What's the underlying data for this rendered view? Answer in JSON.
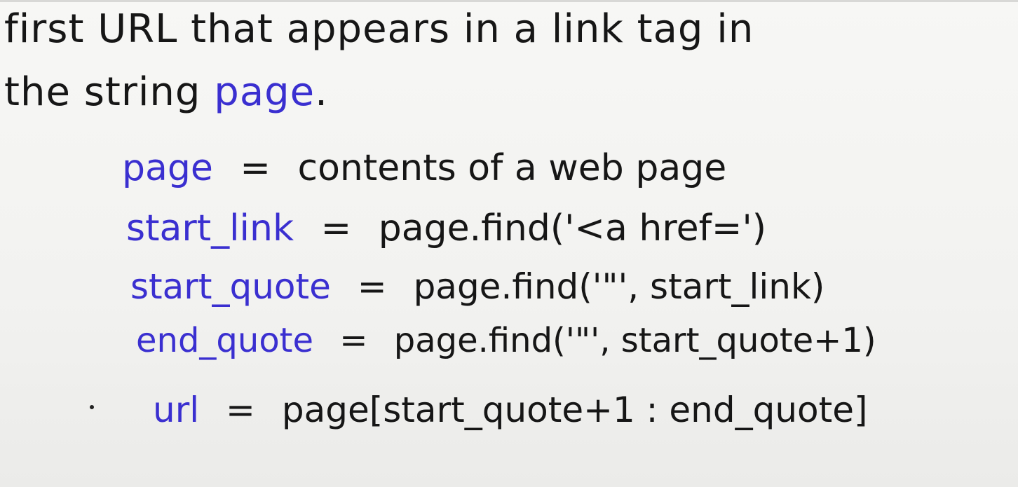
{
  "heading": {
    "line1": "first URL that appears in a link tag in",
    "line2_prefix": "the string ",
    "line2_var": "page",
    "line2_suffix": "."
  },
  "code": {
    "lines": [
      {
        "lhs": "page",
        "eq": "=",
        "rhs": "contents of a web page"
      },
      {
        "lhs": "start_link",
        "eq": "=",
        "rhs": "page.find('<a href=')"
      },
      {
        "lhs": "start_quote",
        "eq": "=",
        "rhs": "page.find('\"', start_link)"
      },
      {
        "lhs": "end_quote",
        "eq": "=",
        "rhs": "page.find('\"', start_quote+1)"
      },
      {
        "lhs": "url",
        "eq": "=",
        "rhs": "page[start_quote+1 : end_quote]"
      }
    ]
  },
  "colors": {
    "ink_black": "#161616",
    "ink_blue": "#3a2fd0",
    "board": "#f4f4f2"
  }
}
